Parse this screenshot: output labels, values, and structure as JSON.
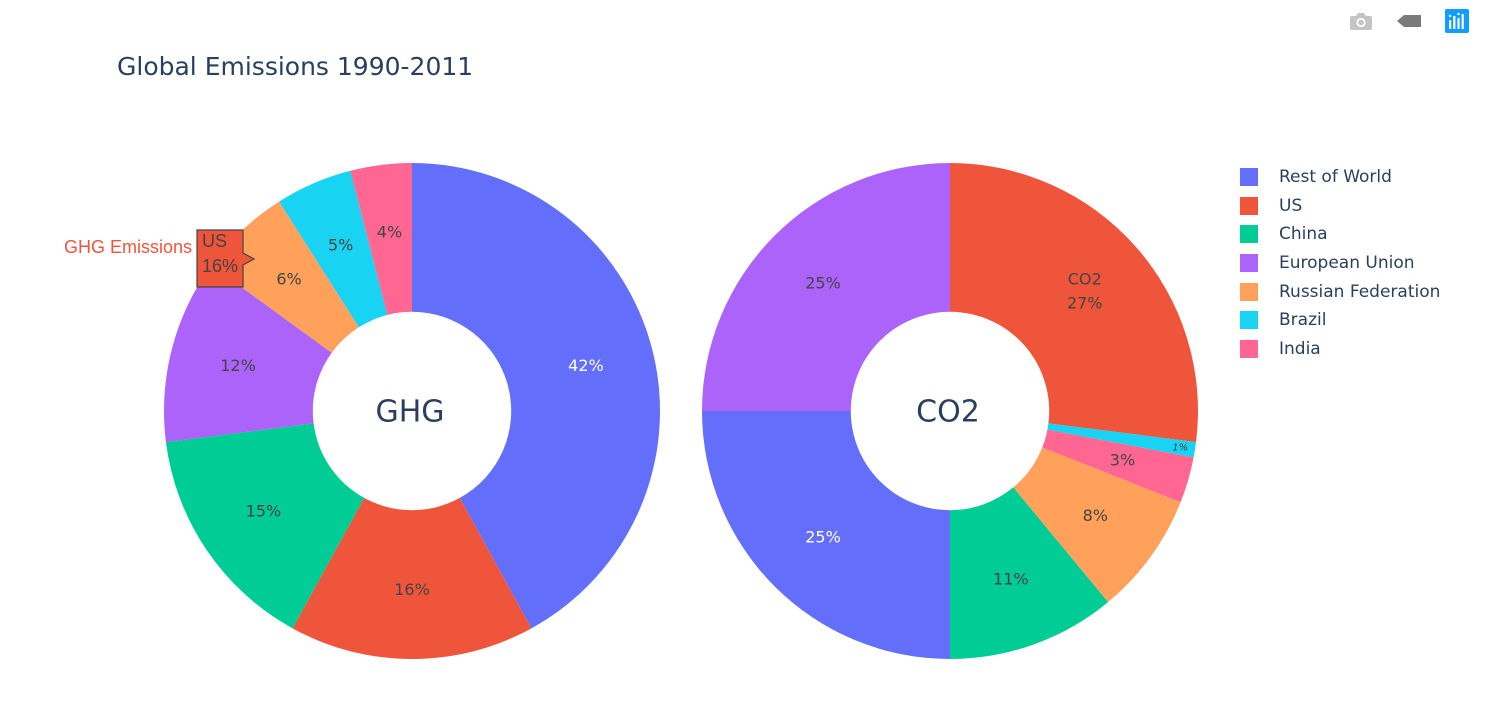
{
  "modebar": {
    "buttons": [
      {
        "icon": "camera-icon",
        "label": "Download plot as a png"
      },
      {
        "icon": "tag-icon",
        "label": "Toggle hover"
      },
      {
        "icon": "plotly-logo-icon",
        "label": "Produced with Plotly"
      }
    ]
  },
  "chart_data": {
    "type": "pie",
    "title": "Global Emissions 1990-2011",
    "legend_position": "top-right",
    "labels": [
      "Rest of World",
      "US",
      "China",
      "European Union",
      "Russian Federation",
      "Brazil",
      "India"
    ],
    "colors": {
      "Rest of World": "#636efa",
      "US": "#ef553b",
      "China": "#00cc96",
      "European Union": "#ab63fa",
      "Russian Federation": "#ffa15a",
      "Brazil": "#19d3f3",
      "India": "#ff6692"
    },
    "series": [
      {
        "name": "GHG",
        "hole_label": "GHG",
        "hole": 0.4,
        "values": [
          {
            "label": "Rest of World",
            "value": 42,
            "text": "42%"
          },
          {
            "label": "US",
            "value": 16,
            "text": "16%"
          },
          {
            "label": "China",
            "value": 15,
            "text": "15%"
          },
          {
            "label": "European Union",
            "value": 12,
            "text": "12%"
          },
          {
            "label": "Russian Federation",
            "value": 6,
            "text": "6%"
          },
          {
            "label": "Brazil",
            "value": 5,
            "text": "5%"
          },
          {
            "label": "India",
            "value": 4,
            "text": "4%"
          }
        ]
      },
      {
        "name": "CO2",
        "hole_label": "CO2",
        "hole": 0.4,
        "values": [
          {
            "label": "US",
            "value": 27,
            "text": "27%"
          },
          {
            "label": "Brazil",
            "value": 1,
            "text": "1%"
          },
          {
            "label": "India",
            "value": 3,
            "text": "3%"
          },
          {
            "label": "Russian Federation",
            "value": 8,
            "text": "8%"
          },
          {
            "label": "China",
            "value": 11,
            "text": "11%"
          },
          {
            "label": "Rest of World",
            "value": 25,
            "text": "25%"
          },
          {
            "label": "European Union",
            "value": 25,
            "text": "25%"
          }
        ],
        "highlight_slice": {
          "label": "US",
          "lines": [
            "CO2",
            "27%"
          ]
        }
      }
    ],
    "hover": {
      "trace": "GHG Emissions",
      "label": "US",
      "percent": "16%"
    }
  }
}
